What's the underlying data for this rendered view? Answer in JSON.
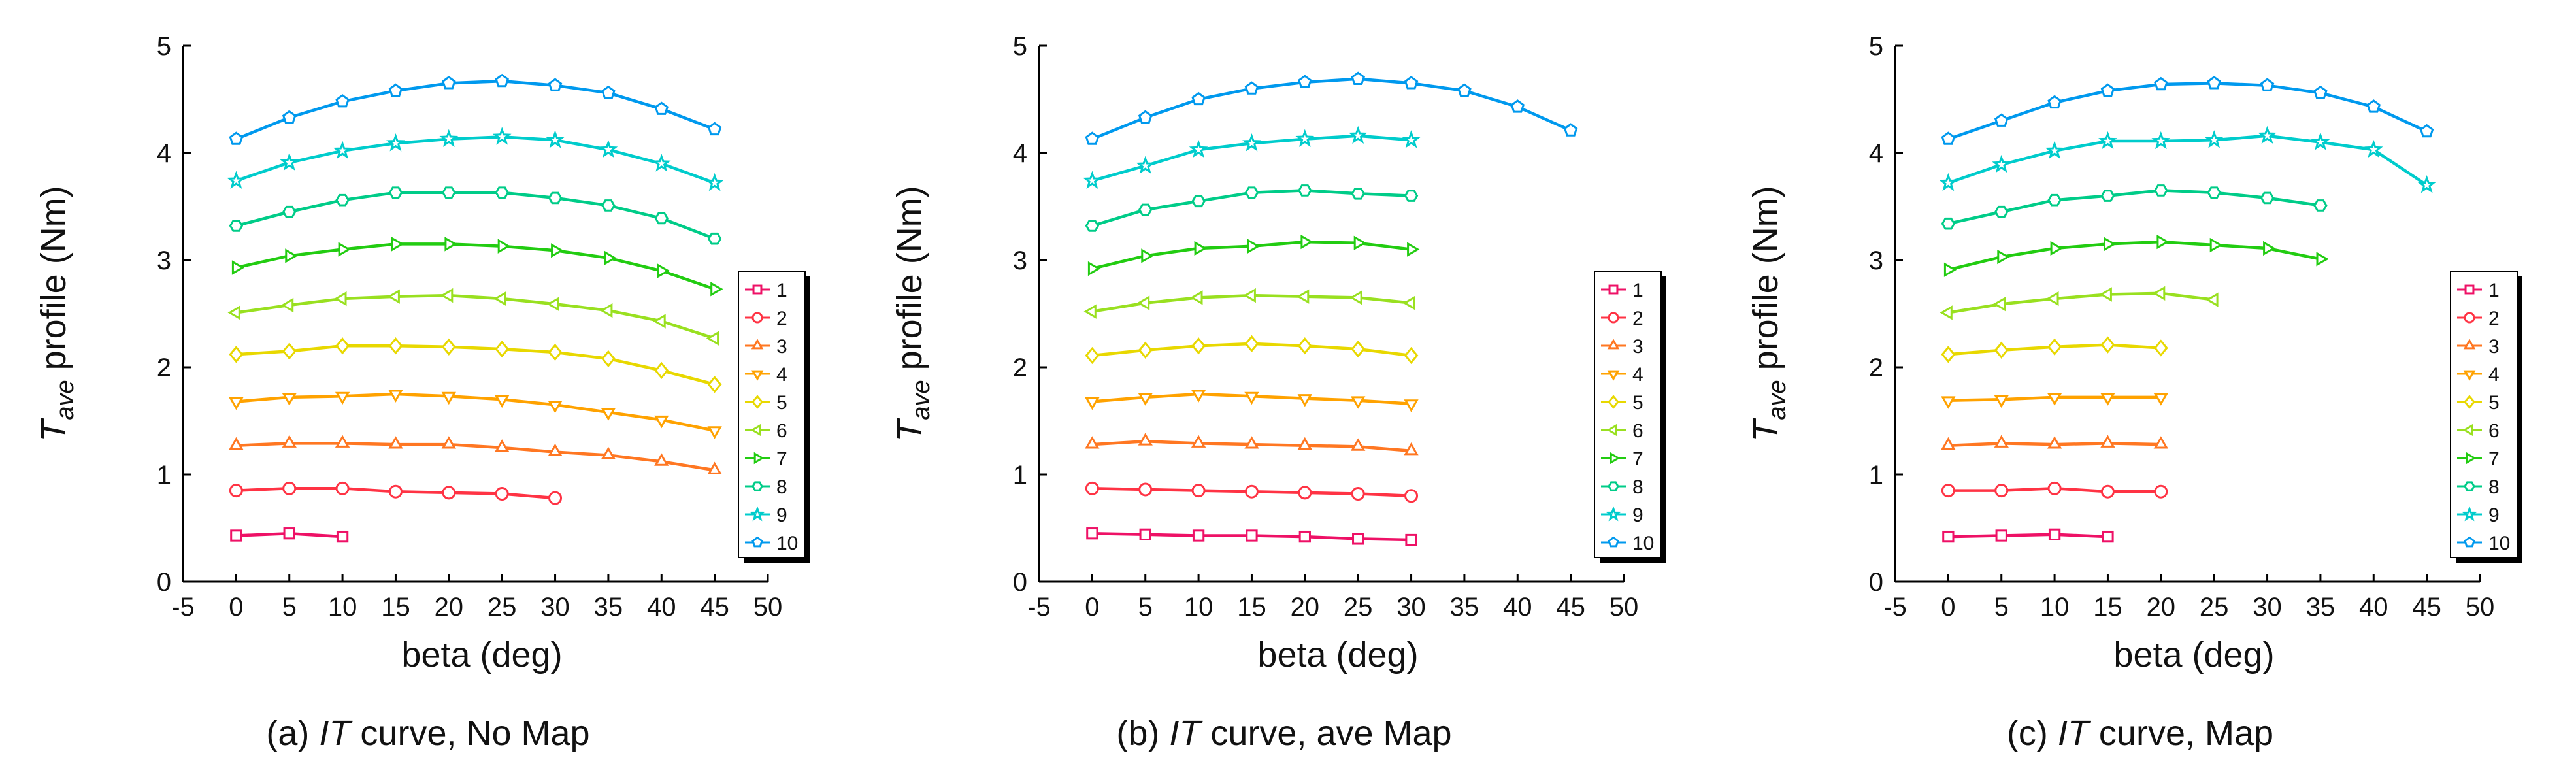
{
  "chart_data": [
    {
      "type": "line",
      "caption": {
        "prefix": "(a) ",
        "italic": "IT",
        "suffix": " curve, No Map"
      },
      "xlabel": "beta (deg)",
      "ylabel": {
        "main": "T",
        "sub": "ave",
        "rest": " profile (Nm)"
      },
      "xlim": [
        -5,
        50
      ],
      "ylim": [
        0,
        5
      ],
      "xticks": [
        "-5",
        "0",
        "5",
        "10",
        "15",
        "20",
        "25",
        "30",
        "35",
        "40",
        "45",
        "50"
      ],
      "yticks": [
        "0",
        "1",
        "2",
        "3",
        "4",
        "5"
      ],
      "legend_position": "right",
      "series": [
        {
          "name": "1",
          "x": [
            0,
            5,
            10
          ],
          "y": [
            0.43,
            0.45,
            0.42
          ]
        },
        {
          "name": "2",
          "x": [
            0,
            5,
            10,
            15,
            20,
            25,
            30
          ],
          "y": [
            0.85,
            0.87,
            0.87,
            0.84,
            0.83,
            0.82,
            0.78
          ]
        },
        {
          "name": "3",
          "x": [
            0,
            5,
            10,
            15,
            20,
            25,
            30,
            35,
            40,
            45
          ],
          "y": [
            1.27,
            1.29,
            1.29,
            1.28,
            1.28,
            1.25,
            1.21,
            1.18,
            1.12,
            1.04
          ]
        },
        {
          "name": "4",
          "x": [
            0,
            5,
            10,
            15,
            20,
            25,
            30,
            35,
            40,
            45
          ],
          "y": [
            1.68,
            1.72,
            1.73,
            1.75,
            1.73,
            1.7,
            1.65,
            1.58,
            1.51,
            1.41
          ]
        },
        {
          "name": "5",
          "x": [
            0,
            5,
            10,
            15,
            20,
            25,
            30,
            35,
            40,
            45
          ],
          "y": [
            2.12,
            2.15,
            2.2,
            2.2,
            2.19,
            2.17,
            2.14,
            2.08,
            1.97,
            1.84
          ]
        },
        {
          "name": "6",
          "x": [
            0,
            5,
            10,
            15,
            20,
            25,
            30,
            35,
            40,
            45
          ],
          "y": [
            2.51,
            2.58,
            2.64,
            2.66,
            2.67,
            2.64,
            2.59,
            2.53,
            2.43,
            2.27
          ]
        },
        {
          "name": "7",
          "x": [
            0,
            5,
            10,
            15,
            20,
            25,
            30,
            35,
            40,
            45
          ],
          "y": [
            2.93,
            3.04,
            3.1,
            3.15,
            3.15,
            3.13,
            3.09,
            3.02,
            2.9,
            2.73
          ]
        },
        {
          "name": "8",
          "x": [
            0,
            5,
            10,
            15,
            20,
            25,
            30,
            35,
            40,
            45
          ],
          "y": [
            3.32,
            3.45,
            3.56,
            3.63,
            3.63,
            3.63,
            3.58,
            3.51,
            3.39,
            3.2
          ]
        },
        {
          "name": "9",
          "x": [
            0,
            5,
            10,
            15,
            20,
            25,
            30,
            35,
            40,
            45
          ],
          "y": [
            3.74,
            3.91,
            4.02,
            4.09,
            4.13,
            4.15,
            4.12,
            4.03,
            3.9,
            3.72
          ]
        },
        {
          "name": "10",
          "x": [
            0,
            5,
            10,
            15,
            20,
            25,
            30,
            35,
            40,
            45
          ],
          "y": [
            4.13,
            4.33,
            4.48,
            4.58,
            4.65,
            4.67,
            4.63,
            4.56,
            4.41,
            4.22
          ]
        }
      ]
    },
    {
      "type": "line",
      "caption": {
        "prefix": "(b) ",
        "italic": "IT",
        "suffix": " curve, ave Map"
      },
      "xlabel": "beta (deg)",
      "ylabel": {
        "main": "T",
        "sub": "ave",
        "rest": " profile (Nm)"
      },
      "xlim": [
        -5,
        50
      ],
      "ylim": [
        0,
        5
      ],
      "xticks": [
        "-5",
        "0",
        "5",
        "10",
        "15",
        "20",
        "25",
        "30",
        "35",
        "40",
        "45",
        "50"
      ],
      "yticks": [
        "0",
        "1",
        "2",
        "3",
        "4",
        "5"
      ],
      "legend_position": "right",
      "series": [
        {
          "name": "1",
          "x": [
            0,
            5,
            10,
            15,
            20,
            25,
            30
          ],
          "y": [
            0.45,
            0.44,
            0.43,
            0.43,
            0.42,
            0.4,
            0.39
          ]
        },
        {
          "name": "2",
          "x": [
            0,
            5,
            10,
            15,
            20,
            25,
            30
          ],
          "y": [
            0.87,
            0.86,
            0.85,
            0.84,
            0.83,
            0.82,
            0.8
          ]
        },
        {
          "name": "3",
          "x": [
            0,
            5,
            10,
            15,
            20,
            25,
            30
          ],
          "y": [
            1.28,
            1.31,
            1.29,
            1.28,
            1.27,
            1.26,
            1.22
          ]
        },
        {
          "name": "4",
          "x": [
            0,
            5,
            10,
            15,
            20,
            25,
            30
          ],
          "y": [
            1.68,
            1.72,
            1.75,
            1.73,
            1.71,
            1.69,
            1.66
          ]
        },
        {
          "name": "5",
          "x": [
            0,
            5,
            10,
            15,
            20,
            25,
            30
          ],
          "y": [
            2.11,
            2.16,
            2.2,
            2.22,
            2.2,
            2.17,
            2.11
          ]
        },
        {
          "name": "6",
          "x": [
            0,
            5,
            10,
            15,
            20,
            25,
            30
          ],
          "y": [
            2.52,
            2.6,
            2.65,
            2.67,
            2.66,
            2.65,
            2.6
          ]
        },
        {
          "name": "7",
          "x": [
            0,
            5,
            10,
            15,
            20,
            25,
            30
          ],
          "y": [
            2.92,
            3.04,
            3.11,
            3.13,
            3.17,
            3.16,
            3.1
          ]
        },
        {
          "name": "8",
          "x": [
            0,
            5,
            10,
            15,
            20,
            25,
            30
          ],
          "y": [
            3.32,
            3.47,
            3.55,
            3.63,
            3.65,
            3.62,
            3.6
          ]
        },
        {
          "name": "9",
          "x": [
            0,
            5,
            10,
            15,
            20,
            25,
            30
          ],
          "y": [
            3.74,
            3.88,
            4.03,
            4.09,
            4.13,
            4.16,
            4.12
          ]
        },
        {
          "name": "10",
          "x": [
            0,
            5,
            10,
            15,
            20,
            25,
            30,
            35,
            40,
            45
          ],
          "y": [
            4.13,
            4.33,
            4.5,
            4.6,
            4.66,
            4.69,
            4.65,
            4.58,
            4.43,
            4.21
          ]
        }
      ]
    },
    {
      "type": "line",
      "caption": {
        "prefix": "(c) ",
        "italic": "IT",
        "suffix": " curve, Map"
      },
      "xlabel": "beta (deg)",
      "ylabel": {
        "main": "T",
        "sub": "ave",
        "rest": " profile (Nm)"
      },
      "xlim": [
        -5,
        50
      ],
      "ylim": [
        0,
        5
      ],
      "xticks": [
        "-5",
        "0",
        "5",
        "10",
        "15",
        "20",
        "25",
        "30",
        "35",
        "40",
        "45",
        "50"
      ],
      "yticks": [
        "0",
        "1",
        "2",
        "3",
        "4",
        "5"
      ],
      "legend_position": "right",
      "series": [
        {
          "name": "1",
          "x": [
            0,
            5,
            10,
            15
          ],
          "y": [
            0.42,
            0.43,
            0.44,
            0.42
          ]
        },
        {
          "name": "2",
          "x": [
            0,
            5,
            10,
            15,
            20
          ],
          "y": [
            0.85,
            0.85,
            0.87,
            0.84,
            0.84
          ]
        },
        {
          "name": "3",
          "x": [
            0,
            5,
            10,
            15,
            20
          ],
          "y": [
            1.27,
            1.29,
            1.28,
            1.29,
            1.28
          ]
        },
        {
          "name": "4",
          "x": [
            0,
            5,
            10,
            15,
            20
          ],
          "y": [
            1.69,
            1.7,
            1.72,
            1.72,
            1.72
          ]
        },
        {
          "name": "5",
          "x": [
            0,
            5,
            10,
            15,
            20
          ],
          "y": [
            2.12,
            2.16,
            2.19,
            2.21,
            2.18
          ]
        },
        {
          "name": "6",
          "x": [
            0,
            5,
            10,
            15,
            20,
            25
          ],
          "y": [
            2.51,
            2.59,
            2.64,
            2.68,
            2.69,
            2.63
          ]
        },
        {
          "name": "7",
          "x": [
            0,
            5,
            10,
            15,
            20,
            25,
            30,
            35
          ],
          "y": [
            2.91,
            3.03,
            3.11,
            3.15,
            3.17,
            3.14,
            3.11,
            3.01
          ]
        },
        {
          "name": "8",
          "x": [
            0,
            5,
            10,
            15,
            20,
            25,
            30,
            35
          ],
          "y": [
            3.34,
            3.45,
            3.56,
            3.6,
            3.65,
            3.63,
            3.58,
            3.51
          ]
        },
        {
          "name": "9",
          "x": [
            0,
            5,
            10,
            15,
            20,
            25,
            30,
            35,
            40,
            45
          ],
          "y": [
            3.72,
            3.89,
            4.02,
            4.11,
            4.11,
            4.12,
            4.16,
            4.1,
            4.03,
            3.7
          ]
        },
        {
          "name": "10",
          "x": [
            0,
            5,
            10,
            15,
            20,
            25,
            30,
            35,
            40,
            45
          ],
          "y": [
            4.13,
            4.3,
            4.47,
            4.58,
            4.64,
            4.65,
            4.63,
            4.56,
            4.43,
            4.2
          ]
        }
      ]
    }
  ],
  "series_colors": [
    "#ee1166",
    "#ff3344",
    "#ff7722",
    "#ffa200",
    "#e8d800",
    "#99e020",
    "#22cc11",
    "#00cc88",
    "#00cccc",
    "#0099ee"
  ],
  "series_markers": [
    "square",
    "circle",
    "triangle-up",
    "triangle-down",
    "diamond",
    "triangle-left",
    "triangle-right",
    "hexagon",
    "star",
    "pentagon"
  ]
}
